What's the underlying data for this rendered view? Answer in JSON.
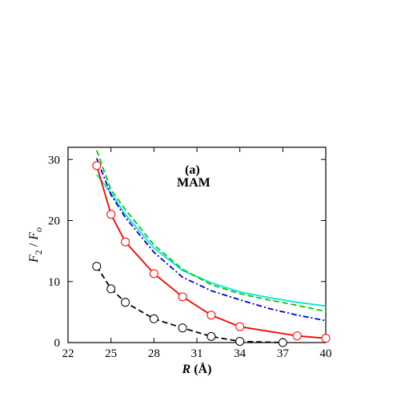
{
  "chart_data": {
    "type": "line",
    "panel_label": "(a)",
    "annotation": "MAM",
    "xlabel": {
      "symbol": "R",
      "unit": " (Å)"
    },
    "ylabel": {
      "num": "F",
      "num_sub": "2",
      "slash": " / ",
      "den": "F",
      "den_sub": "o"
    },
    "xlim": [
      22,
      40
    ],
    "ylim": [
      0,
      32
    ],
    "xticks": [
      22,
      25,
      28,
      31,
      34,
      37,
      40
    ],
    "yticks": [
      0,
      10,
      20,
      30
    ],
    "grid": false,
    "legend": "none",
    "series": [
      {
        "color": "#00e5e5",
        "dash": "",
        "marker": "none",
        "x": [
          24,
          25,
          26,
          28,
          30,
          32,
          34,
          36,
          38,
          40
        ],
        "y": [
          27.5,
          24.5,
          21.0,
          15.5,
          11.8,
          9.8,
          8.3,
          7.4,
          6.6,
          6.0
        ]
      },
      {
        "color": "#00cc00",
        "dash": "7,4",
        "marker": "none",
        "x": [
          24,
          25,
          26,
          28,
          30,
          32,
          34,
          36,
          38,
          40
        ],
        "y": [
          31.5,
          25.0,
          21.8,
          16.0,
          12.0,
          9.5,
          8.0,
          7.0,
          6.1,
          5.1
        ]
      },
      {
        "color": "#0000cc",
        "dash": "7,3,2,3",
        "marker": "none",
        "x": [
          24,
          25,
          26,
          28,
          30,
          32,
          34,
          36,
          38,
          40
        ],
        "y": [
          30.2,
          24.2,
          20.5,
          14.8,
          10.7,
          8.5,
          7.0,
          5.6,
          4.5,
          3.6
        ]
      },
      {
        "color": "#ff0000",
        "dash": "",
        "marker": "circle",
        "x": [
          24,
          25,
          26,
          28,
          30,
          32,
          34,
          38,
          40
        ],
        "y": [
          29.0,
          21.0,
          16.5,
          11.3,
          7.5,
          4.5,
          2.6,
          1.1,
          0.7
        ]
      },
      {
        "color": "#000000",
        "dash": "7,4",
        "marker": "circle",
        "x": [
          24,
          25,
          26,
          28,
          30,
          32,
          34,
          37
        ],
        "y": [
          12.5,
          8.8,
          6.6,
          3.9,
          2.4,
          1.0,
          0.2,
          0.0
        ]
      }
    ]
  }
}
